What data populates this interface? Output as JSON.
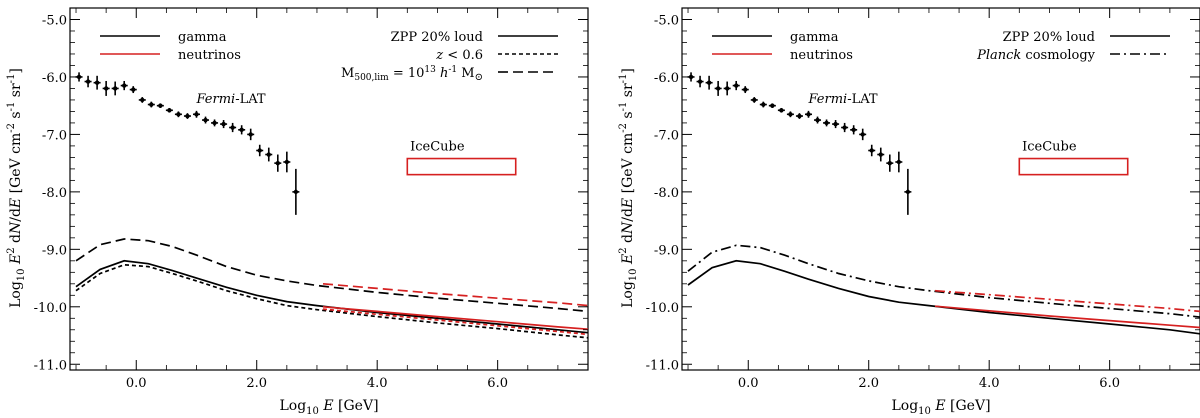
{
  "chart_data": [
    {
      "type": "line",
      "x_axis": {
        "label_pre": "Log",
        "label_sub": "10",
        "label_var": "E",
        "label_post": " [GeV]",
        "lim": [
          -1.1,
          7.5
        ],
        "ticks": [
          0.0,
          2.0,
          4.0,
          6.0
        ],
        "tick_labels": [
          "0.0",
          "2.0",
          "4.0",
          "6.0"
        ]
      },
      "y_axis": {
        "lim": [
          -11.1,
          -4.8
        ],
        "ticks": [
          -5.0,
          -6.0,
          -7.0,
          -8.0,
          -9.0,
          -10.0,
          -11.0
        ],
        "tick_labels": [
          "-5.0",
          "-6.0",
          "-7.0",
          "-8.0",
          "-9.0",
          "-10.0",
          "-11.0"
        ]
      },
      "legend_left": [
        {
          "label": "gamma",
          "color": "#000000"
        },
        {
          "label": "neutrinos",
          "color": "#d62020"
        }
      ],
      "legend_right": [
        {
          "label_parts": [
            "ZPP 20% loud"
          ],
          "dash": "solid"
        },
        {
          "label_parts": [
            "z",
            " < 0.6"
          ],
          "dash": "short"
        },
        {
          "label_parts": [
            "M",
            "500,lim",
            " = 10",
            "13",
            " h",
            "-1",
            " M",
            "⊙"
          ],
          "dash": "long"
        }
      ],
      "fermi": {
        "label_italic": "Fermi",
        "label_rest": "-LAT",
        "label_at": [
          1.0,
          -6.45
        ]
      },
      "icecube": {
        "label": "IceCube",
        "box_x": [
          4.5,
          6.3
        ],
        "box_y": [
          -7.7,
          -7.42
        ],
        "color": "#d62020"
      },
      "fermi_points": [
        [
          -0.95,
          -6.0,
          0.08
        ],
        [
          -0.8,
          -6.08,
          0.1
        ],
        [
          -0.65,
          -6.1,
          0.12
        ],
        [
          -0.5,
          -6.2,
          0.13
        ],
        [
          -0.35,
          -6.2,
          0.12
        ],
        [
          -0.2,
          -6.15,
          0.08
        ],
        [
          -0.05,
          -6.22,
          0.06
        ],
        [
          0.1,
          -6.4,
          0.05
        ],
        [
          0.25,
          -6.48,
          0.05
        ],
        [
          0.4,
          -6.5,
          0.04
        ],
        [
          0.55,
          -6.58,
          0.04
        ],
        [
          0.7,
          -6.65,
          0.05
        ],
        [
          0.85,
          -6.68,
          0.05
        ],
        [
          1.0,
          -6.65,
          0.06
        ],
        [
          1.15,
          -6.75,
          0.06
        ],
        [
          1.3,
          -6.8,
          0.06
        ],
        [
          1.45,
          -6.82,
          0.07
        ],
        [
          1.6,
          -6.88,
          0.08
        ],
        [
          1.75,
          -6.92,
          0.08
        ],
        [
          1.9,
          -7.0,
          0.1
        ],
        [
          2.05,
          -7.28,
          0.1
        ],
        [
          2.2,
          -7.35,
          0.12
        ],
        [
          2.35,
          -7.5,
          0.15
        ],
        [
          2.5,
          -7.48,
          0.18
        ],
        [
          2.65,
          -8.0,
          0.4
        ]
      ],
      "series": [
        {
          "name": "gamma ZPP 20% loud",
          "color": "#000000",
          "dash": "solid",
          "x": [
            -1.0,
            -0.6,
            -0.2,
            0.2,
            0.6,
            1.0,
            1.5,
            2.0,
            2.5,
            3.0,
            4.0,
            5.0,
            6.0,
            7.0,
            7.5
          ],
          "y": [
            -9.65,
            -9.35,
            -9.2,
            -9.25,
            -9.37,
            -9.5,
            -9.66,
            -9.8,
            -9.91,
            -9.98,
            -10.1,
            -10.2,
            -10.3,
            -10.4,
            -10.45
          ]
        },
        {
          "name": "gamma z<0.6",
          "color": "#000000",
          "dash": "short",
          "x": [
            -1.0,
            -0.6,
            -0.2,
            0.2,
            0.6,
            1.0,
            1.5,
            2.0,
            2.5,
            3.0,
            4.0,
            5.0,
            6.0,
            7.0,
            7.5
          ],
          "y": [
            -9.72,
            -9.42,
            -9.27,
            -9.3,
            -9.42,
            -9.55,
            -9.72,
            -9.86,
            -9.98,
            -10.05,
            -10.17,
            -10.28,
            -10.38,
            -10.49,
            -10.54
          ]
        },
        {
          "name": "gamma M500,lim",
          "color": "#000000",
          "dash": "long",
          "x": [
            -1.0,
            -0.6,
            -0.2,
            0.2,
            0.6,
            1.0,
            1.5,
            2.0,
            2.5,
            3.0,
            4.0,
            5.0,
            6.0,
            7.0,
            7.5
          ],
          "y": [
            -9.2,
            -8.92,
            -8.82,
            -8.85,
            -8.95,
            -9.1,
            -9.3,
            -9.45,
            -9.55,
            -9.63,
            -9.75,
            -9.85,
            -9.94,
            -10.03,
            -10.08
          ]
        },
        {
          "name": "neutrinos ZPP 20% loud",
          "color": "#d62020",
          "dash": "solid",
          "x": [
            3.1,
            4.0,
            5.0,
            6.0,
            7.0,
            7.5
          ],
          "y": [
            -10.0,
            -10.08,
            -10.17,
            -10.26,
            -10.35,
            -10.39
          ]
        },
        {
          "name": "neutrinos z<0.6",
          "color": "#d62020",
          "dash": "short",
          "x": [
            3.1,
            4.0,
            5.0,
            6.0,
            7.0,
            7.5
          ],
          "y": [
            -10.04,
            -10.13,
            -10.23,
            -10.33,
            -10.43,
            -10.48
          ]
        },
        {
          "name": "neutrinos M500,lim",
          "color": "#d62020",
          "dash": "long",
          "x": [
            3.1,
            4.0,
            5.0,
            6.0,
            7.0,
            7.5
          ],
          "y": [
            -9.6,
            -9.68,
            -9.77,
            -9.85,
            -9.93,
            -9.98
          ]
        }
      ]
    },
    {
      "type": "line",
      "x_axis": {
        "label_pre": "Log",
        "label_sub": "10",
        "label_var": "E",
        "label_post": " [GeV]",
        "lim": [
          -1.1,
          7.5
        ],
        "ticks": [
          0.0,
          2.0,
          4.0,
          6.0
        ],
        "tick_labels": [
          "0.0",
          "2.0",
          "4.0",
          "6.0"
        ]
      },
      "y_axis": {
        "lim": [
          -11.1,
          -4.8
        ],
        "ticks": [
          -5.0,
          -6.0,
          -7.0,
          -8.0,
          -9.0,
          -10.0,
          -11.0
        ],
        "tick_labels": [
          "-5.0",
          "-6.0",
          "-7.0",
          "-8.0",
          "-9.0",
          "-10.0",
          "-11.0"
        ]
      },
      "legend_left": [
        {
          "label": "gamma",
          "color": "#000000"
        },
        {
          "label": "neutrinos",
          "color": "#d62020"
        }
      ],
      "legend_right": [
        {
          "label_parts": [
            "ZPP 20% loud"
          ],
          "dash": "solid"
        },
        {
          "label_parts": [
            "Planck",
            " cosmology"
          ],
          "dash": "dashdot"
        }
      ],
      "fermi": {
        "label_italic": "Fermi",
        "label_rest": "-LAT",
        "label_at": [
          1.0,
          -6.45
        ]
      },
      "icecube": {
        "label": "IceCube",
        "box_x": [
          4.5,
          6.3
        ],
        "box_y": [
          -7.7,
          -7.42
        ],
        "color": "#d62020"
      },
      "fermi_points": [
        [
          -0.95,
          -6.0,
          0.08
        ],
        [
          -0.8,
          -6.08,
          0.1
        ],
        [
          -0.65,
          -6.1,
          0.12
        ],
        [
          -0.5,
          -6.2,
          0.13
        ],
        [
          -0.35,
          -6.2,
          0.12
        ],
        [
          -0.2,
          -6.15,
          0.08
        ],
        [
          -0.05,
          -6.22,
          0.06
        ],
        [
          0.1,
          -6.4,
          0.05
        ],
        [
          0.25,
          -6.48,
          0.05
        ],
        [
          0.4,
          -6.5,
          0.04
        ],
        [
          0.55,
          -6.58,
          0.04
        ],
        [
          0.7,
          -6.65,
          0.05
        ],
        [
          0.85,
          -6.68,
          0.05
        ],
        [
          1.0,
          -6.65,
          0.06
        ],
        [
          1.15,
          -6.75,
          0.06
        ],
        [
          1.3,
          -6.8,
          0.06
        ],
        [
          1.45,
          -6.82,
          0.07
        ],
        [
          1.6,
          -6.88,
          0.08
        ],
        [
          1.75,
          -6.92,
          0.08
        ],
        [
          1.9,
          -7.0,
          0.1
        ],
        [
          2.05,
          -7.28,
          0.1
        ],
        [
          2.2,
          -7.35,
          0.12
        ],
        [
          2.35,
          -7.5,
          0.15
        ],
        [
          2.5,
          -7.48,
          0.18
        ],
        [
          2.65,
          -8.0,
          0.4
        ]
      ],
      "series": [
        {
          "name": "gamma ZPP 20% loud",
          "color": "#000000",
          "dash": "solid",
          "x": [
            -1.0,
            -0.6,
            -0.2,
            0.2,
            0.6,
            1.0,
            1.5,
            2.0,
            2.5,
            3.0,
            4.0,
            5.0,
            6.0,
            7.0,
            7.5
          ],
          "y": [
            -9.62,
            -9.32,
            -9.2,
            -9.25,
            -9.38,
            -9.52,
            -9.68,
            -9.82,
            -9.92,
            -9.98,
            -10.1,
            -10.2,
            -10.3,
            -10.4,
            -10.47
          ]
        },
        {
          "name": "gamma Planck cosmology",
          "color": "#000000",
          "dash": "dashdot",
          "x": [
            -1.0,
            -0.6,
            -0.2,
            0.2,
            0.6,
            1.0,
            1.5,
            2.0,
            2.5,
            3.0,
            4.0,
            5.0,
            6.0,
            7.0,
            7.5
          ],
          "y": [
            -9.38,
            -9.05,
            -8.93,
            -8.97,
            -9.1,
            -9.25,
            -9.42,
            -9.55,
            -9.65,
            -9.72,
            -9.84,
            -9.94,
            -10.03,
            -10.12,
            -10.18
          ]
        },
        {
          "name": "neutrinos ZPP 20% loud",
          "color": "#d62020",
          "dash": "solid",
          "x": [
            3.1,
            4.0,
            5.0,
            6.0,
            7.0,
            7.5
          ],
          "y": [
            -9.99,
            -10.07,
            -10.16,
            -10.24,
            -10.32,
            -10.36
          ]
        },
        {
          "name": "neutrinos Planck cosmology",
          "color": "#d62020",
          "dash": "dashdot",
          "x": [
            3.1,
            4.0,
            5.0,
            6.0,
            7.0,
            7.5
          ],
          "y": [
            -9.72,
            -9.79,
            -9.87,
            -9.95,
            -10.03,
            -10.08
          ]
        }
      ]
    }
  ]
}
